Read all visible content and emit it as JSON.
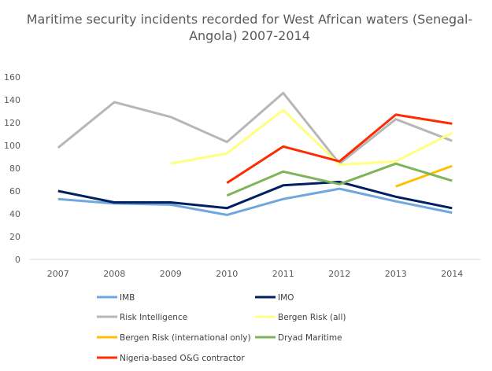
{
  "chart_data": {
    "type": "line",
    "title_lines": [
      "Maritime security incidents recorded for West African waters (Senegal-",
      "Angola) 2007-2014"
    ],
    "categories": [
      "2007",
      "2008",
      "2009",
      "2010",
      "2011",
      "2012",
      "2013",
      "2014"
    ],
    "ylim": [
      0,
      160
    ],
    "yticks": [
      0,
      20,
      40,
      60,
      80,
      100,
      120,
      140,
      160
    ],
    "grid": false,
    "legend_position": "bottom",
    "series": [
      {
        "name": "IMB",
        "color": "#6fa8dc",
        "values": [
          53,
          49,
          48,
          39,
          53,
          62,
          51,
          41
        ]
      },
      {
        "name": "IMO",
        "color": "#002060",
        "values": [
          60,
          50,
          50,
          45,
          65,
          68,
          55,
          45
        ]
      },
      {
        "name": "Risk Intelligence",
        "color": "#b7b7b7",
        "values": [
          98,
          138,
          125,
          103,
          146,
          84,
          123,
          104
        ]
      },
      {
        "name": "Bergen Risk (all)",
        "color": "#ffff80",
        "values": [
          null,
          null,
          84,
          93,
          131,
          83,
          86,
          111
        ]
      },
      {
        "name": "Bergen Risk (international only)",
        "color": "#ffc000",
        "values": [
          null,
          null,
          null,
          null,
          null,
          null,
          64,
          82
        ]
      },
      {
        "name": "Dryad Maritime",
        "color": "#7fb55a",
        "values": [
          null,
          null,
          null,
          56,
          77,
          66,
          84,
          69
        ]
      },
      {
        "name": "Nigeria-based O&G contractor",
        "color": "#ff2a00",
        "values": [
          null,
          null,
          null,
          67,
          99,
          86,
          127,
          119
        ]
      }
    ]
  }
}
